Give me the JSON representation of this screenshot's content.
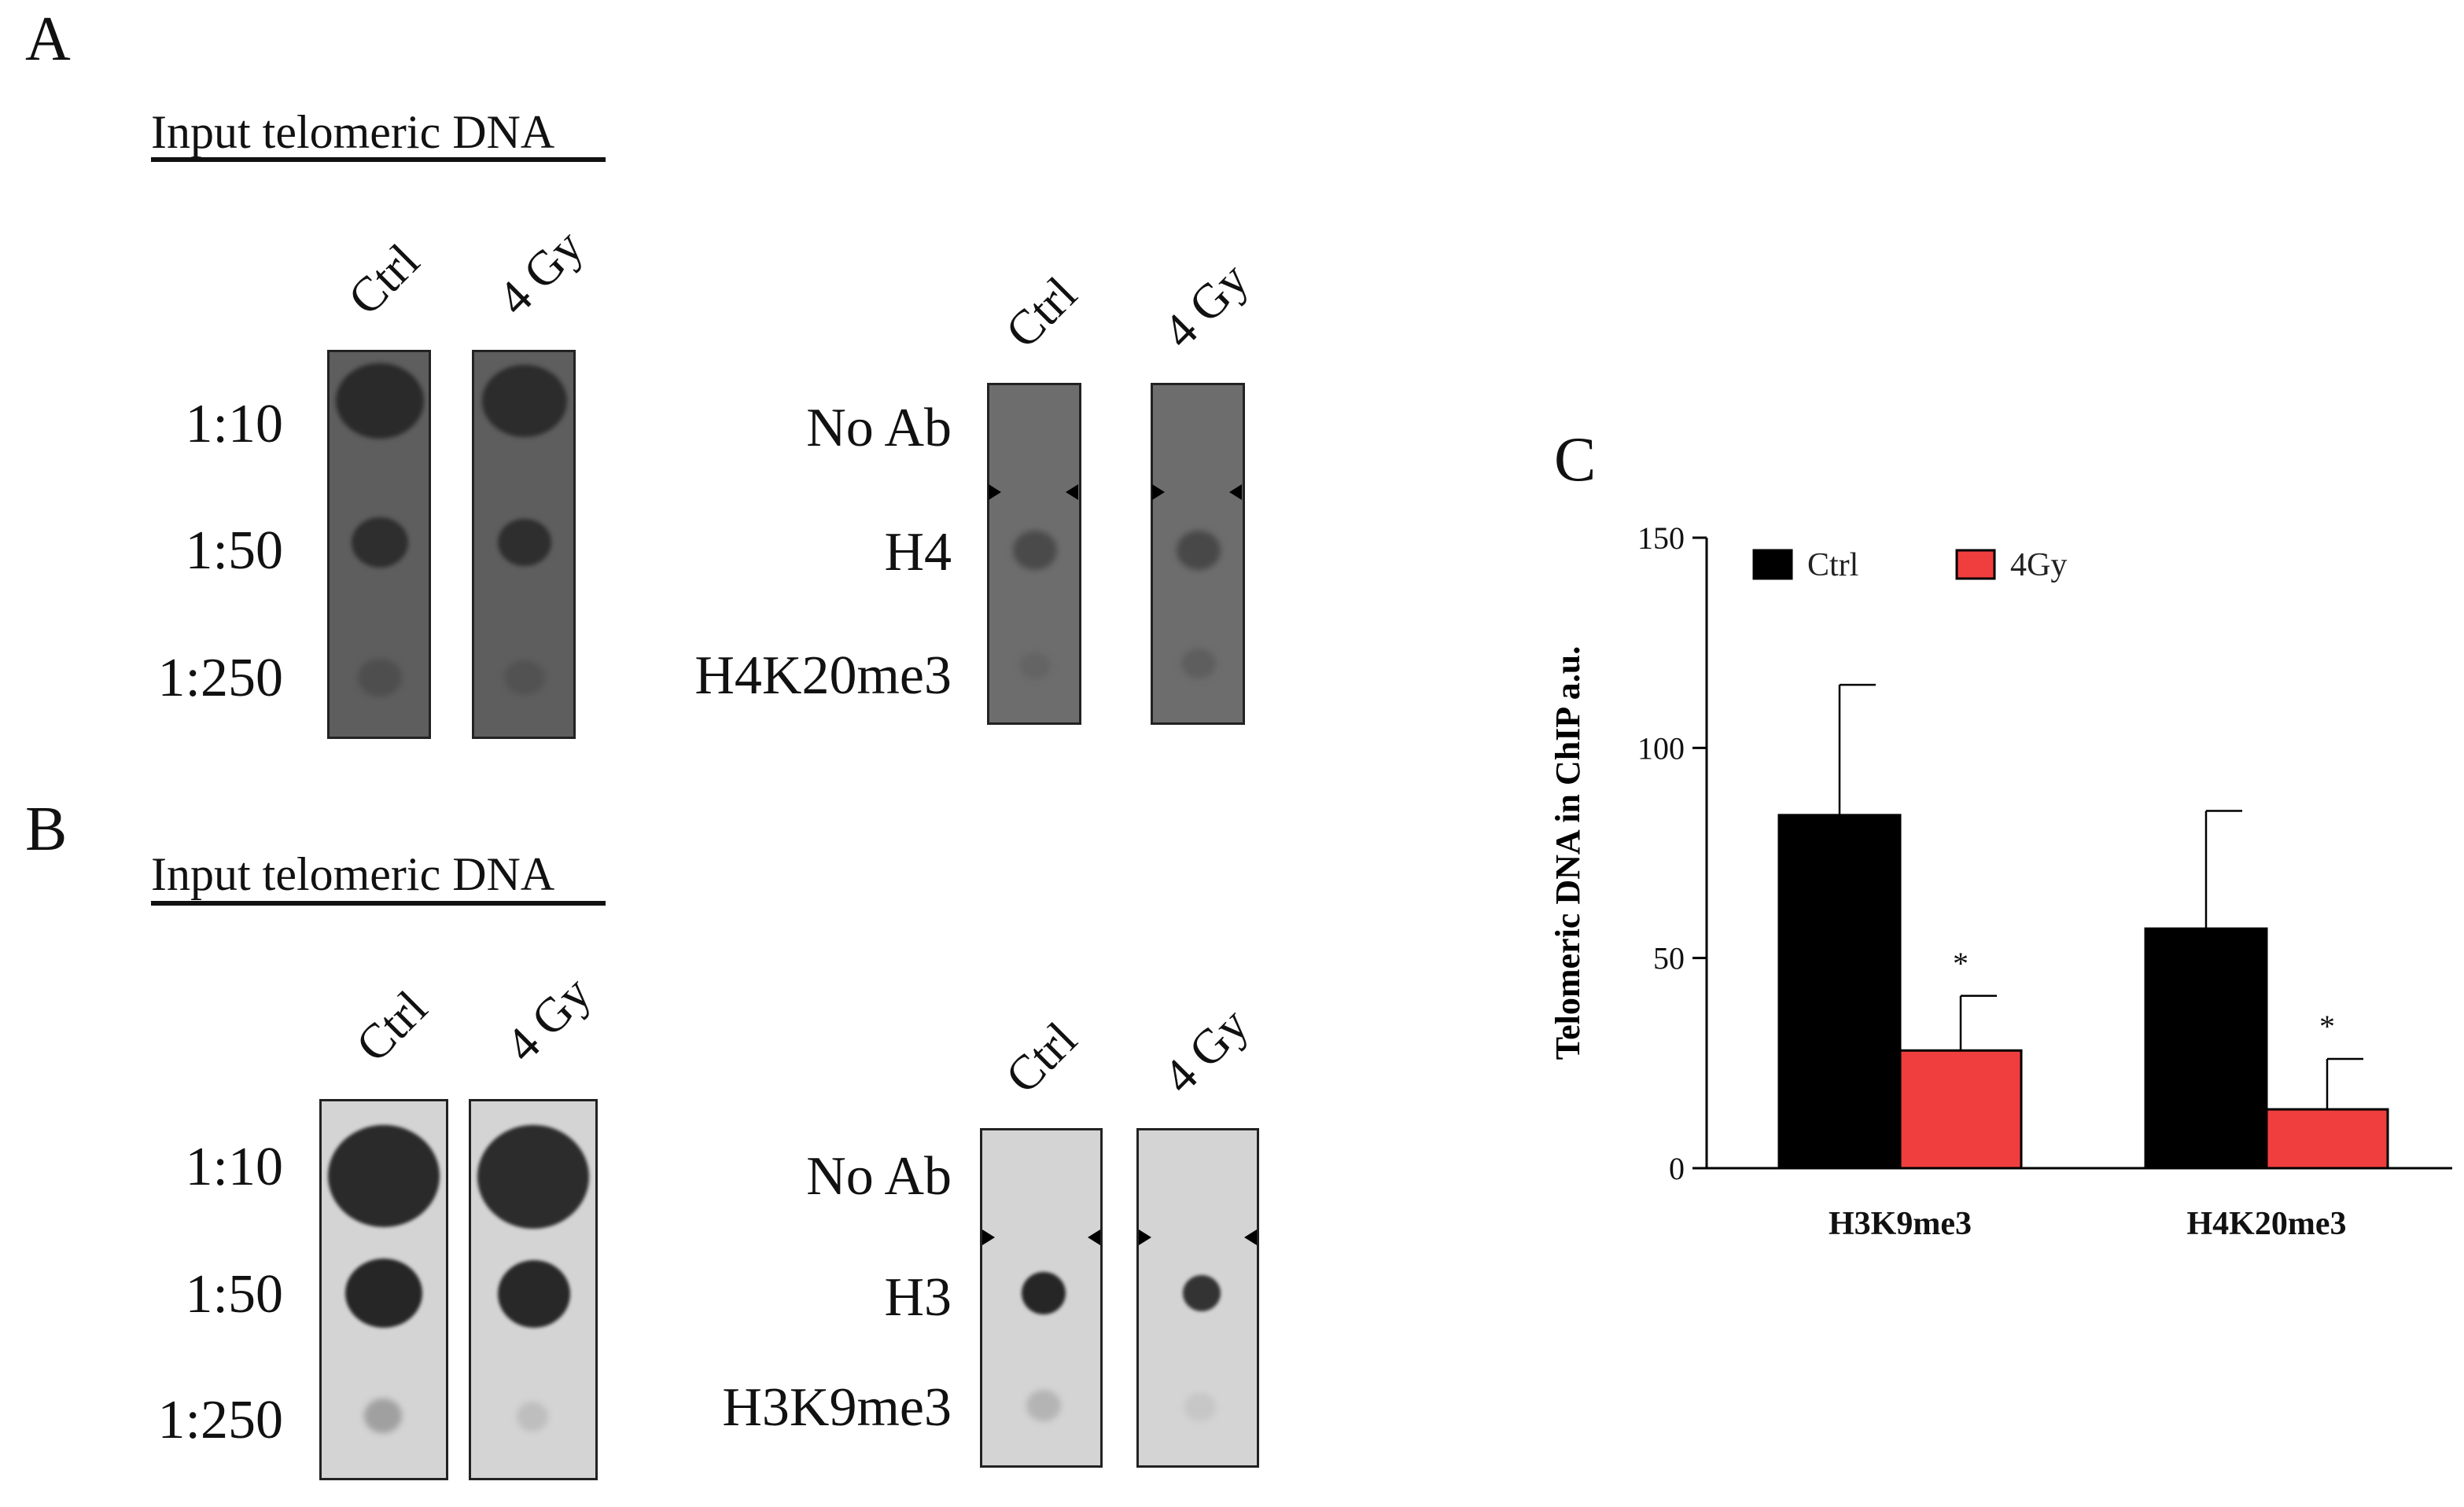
{
  "panels": {
    "A": {
      "letter": "A",
      "input_title": "Input telomeric DNA",
      "input_lanes": [
        "Ctrl",
        "4 Gy"
      ],
      "dilutions": [
        "1:10",
        "1:50",
        "1:250"
      ],
      "chip_lanes": [
        "Ctrl",
        "4 Gy"
      ],
      "chip_rows": [
        "No Ab",
        "H4",
        "H4K20me3"
      ]
    },
    "B": {
      "letter": "B",
      "input_title": "Input telomeric DNA",
      "input_lanes": [
        "Ctrl",
        "4 Gy"
      ],
      "dilutions": [
        "1:10",
        "1:50",
        "1:250"
      ],
      "chip_lanes": [
        "Ctrl",
        "4 Gy"
      ],
      "chip_rows": [
        "No Ab",
        "H3",
        "H3K9me3"
      ]
    },
    "C": {
      "letter": "C"
    }
  },
  "chart_data": {
    "type": "bar",
    "ylabel": "Telomeric DNA in ChIP a.u.",
    "xlabel": "",
    "ylim": [
      0,
      150
    ],
    "yticks": [
      0,
      50,
      100,
      150
    ],
    "categories": [
      "H3K9me3",
      "H4K20me3"
    ],
    "series": [
      {
        "name": "Ctrl",
        "color": "#000000",
        "values": [
          84,
          57
        ],
        "errors": [
          31,
          28
        ],
        "annotations": [
          "",
          ""
        ]
      },
      {
        "name": "4Gy",
        "color": "#f03e3e",
        "values": [
          28,
          14
        ],
        "errors": [
          13,
          12
        ],
        "annotations": [
          "*",
          "*"
        ]
      }
    ],
    "legend_position": "top-left"
  }
}
